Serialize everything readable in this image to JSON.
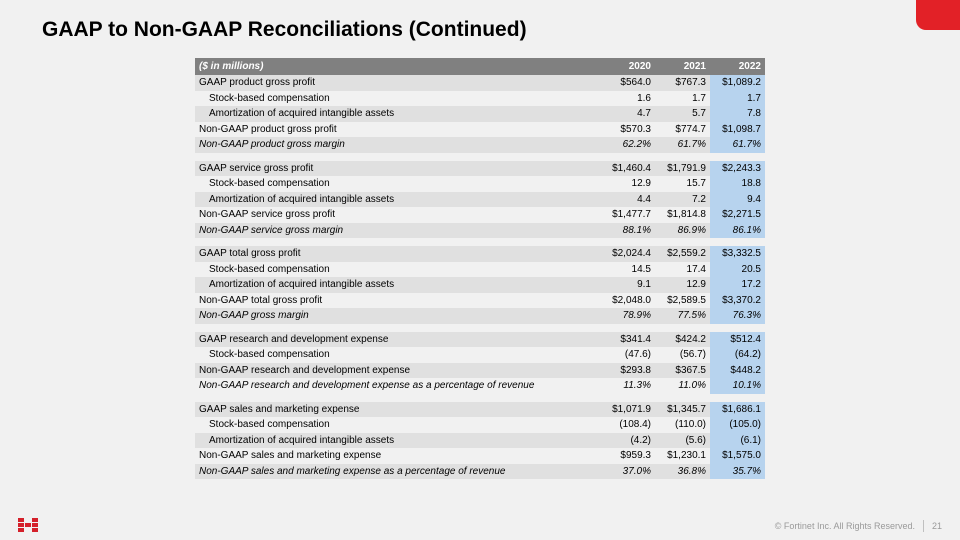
{
  "title": "GAAP to Non-GAAP Reconciliations (Continued)",
  "footer": {
    "copyright": "© Fortinet Inc. All Rights Reserved.",
    "page": "21"
  },
  "table": {
    "header": {
      "label": "($ in millions)",
      "cols": [
        "2020",
        "2021",
        "2022"
      ]
    },
    "groups": [
      {
        "rows": [
          {
            "label": "GAAP product gross profit",
            "vals": [
              "$564.0",
              "$767.3",
              "$1,089.2"
            ],
            "band": true
          },
          {
            "label": "Stock-based compensation",
            "vals": [
              "1.6",
              "1.7",
              "1.7"
            ],
            "indent": 1
          },
          {
            "label": "Amortization of acquired intangible assets",
            "vals": [
              "4.7",
              "5.7",
              "7.8"
            ],
            "band": true,
            "indent": 1
          },
          {
            "label": "Non-GAAP product gross profit",
            "vals": [
              "$570.3",
              "$774.7",
              "$1,098.7"
            ]
          },
          {
            "label": "Non-GAAP product gross margin",
            "vals": [
              "62.2%",
              "61.7%",
              "61.7%"
            ],
            "band": true,
            "italic": true
          }
        ]
      },
      {
        "rows": [
          {
            "label": "GAAP service gross profit",
            "vals": [
              "$1,460.4",
              "$1,791.9",
              "$2,243.3"
            ],
            "band": true
          },
          {
            "label": "Stock-based compensation",
            "vals": [
              "12.9",
              "15.7",
              "18.8"
            ],
            "indent": 1
          },
          {
            "label": "Amortization of acquired intangible assets",
            "vals": [
              "4.4",
              "7.2",
              "9.4"
            ],
            "band": true,
            "indent": 1
          },
          {
            "label": "Non-GAAP service gross profit",
            "vals": [
              "$1,477.7",
              "$1,814.8",
              "$2,271.5"
            ]
          },
          {
            "label": "Non-GAAP service gross margin",
            "vals": [
              "88.1%",
              "86.9%",
              "86.1%"
            ],
            "band": true,
            "italic": true
          }
        ]
      },
      {
        "rows": [
          {
            "label": "GAAP total gross profit",
            "vals": [
              "$2,024.4",
              "$2,559.2",
              "$3,332.5"
            ],
            "band": true
          },
          {
            "label": "Stock-based compensation",
            "vals": [
              "14.5",
              "17.4",
              "20.5"
            ],
            "indent": 1
          },
          {
            "label": "Amortization of acquired intangible assets",
            "vals": [
              "9.1",
              "12.9",
              "17.2"
            ],
            "band": true,
            "indent": 1
          },
          {
            "label": "Non-GAAP total gross profit",
            "vals": [
              "$2,048.0",
              "$2,589.5",
              "$3,370.2"
            ]
          },
          {
            "label": "Non-GAAP gross margin",
            "vals": [
              "78.9%",
              "77.5%",
              "76.3%"
            ],
            "band": true,
            "italic": true
          }
        ]
      },
      {
        "rows": [
          {
            "label": "GAAP research and development expense",
            "vals": [
              "$341.4",
              "$424.2",
              "$512.4"
            ],
            "band": true
          },
          {
            "label": "Stock-based compensation",
            "vals": [
              "(47.6)",
              "(56.7)",
              "(64.2)"
            ],
            "indent": 1
          },
          {
            "label": "Non-GAAP research and development expense",
            "vals": [
              "$293.8",
              "$367.5",
              "$448.2"
            ],
            "band": true
          },
          {
            "label": "Non-GAAP research and development expense as a percentage of revenue",
            "vals": [
              "11.3%",
              "11.0%",
              "10.1%"
            ],
            "italic": true
          }
        ]
      },
      {
        "rows": [
          {
            "label": "GAAP sales and marketing expense",
            "vals": [
              "$1,071.9",
              "$1,345.7",
              "$1,686.1"
            ],
            "band": true
          },
          {
            "label": "Stock-based compensation",
            "vals": [
              "(108.4)",
              "(110.0)",
              "(105.0)"
            ],
            "indent": 1
          },
          {
            "label": "Amortization of acquired intangible assets",
            "vals": [
              "(4.2)",
              "(5.6)",
              "(6.1)"
            ],
            "band": true,
            "indent": 1
          },
          {
            "label": "Non-GAAP sales and marketing expense",
            "vals": [
              "$959.3",
              "$1,230.1",
              "$1,575.0"
            ]
          },
          {
            "label": "Non-GAAP sales and marketing expense as a percentage of revenue",
            "vals": [
              "37.0%",
              "36.8%",
              "35.7%"
            ],
            "band": true,
            "italic": true
          }
        ]
      }
    ]
  }
}
